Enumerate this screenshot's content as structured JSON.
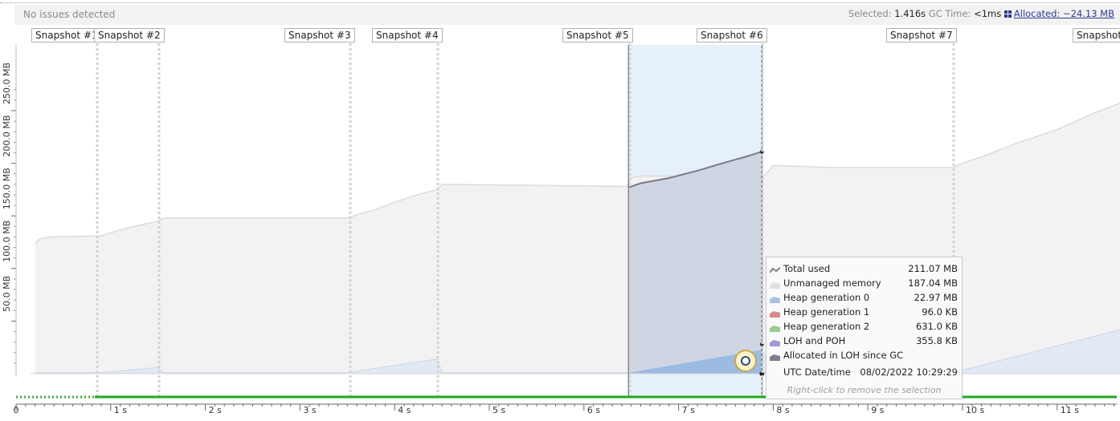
{
  "status": {
    "text": "No issues detected"
  },
  "selection": {
    "selected_label": "Selected:",
    "selected_value": "1.416s",
    "gc_label": "GC Time:",
    "gc_value": "<1ms",
    "allocated": "Allocated: ~24.13 MB"
  },
  "snapshots": [
    {
      "label": "Snapshot #1",
      "t": 0.0
    },
    {
      "label": "Snapshot #2",
      "t": 0.88
    },
    {
      "label": "Snapshot #3",
      "t": 3.55
    },
    {
      "label": "Snapshot #4",
      "t": 4.45
    },
    {
      "label": "Snapshot #5",
      "t": 6.45
    },
    {
      "label": "Snapshot #6",
      "t": 7.85
    },
    {
      "label": "Snapshot #7",
      "t": 9.9
    },
    {
      "label": "Snapshot",
      "t": 11.7
    }
  ],
  "chart_data": {
    "type": "area",
    "xlabel": "",
    "ylabel": "",
    "x_ticks": [
      "0",
      "1 s",
      "2 s",
      "3 s",
      "4 s",
      "5 s",
      "6 s",
      "7 s",
      "8 s",
      "9 s",
      "10 s",
      "11 s"
    ],
    "y_ticks": [
      "50.0 MB",
      "100.0 MB",
      "150.0 MB",
      "200.0 MB",
      "250.0 MB"
    ],
    "xlim": [
      0,
      11.8
    ],
    "ylim": [
      0,
      280
    ],
    "selection_range_s": [
      6.47,
      7.88
    ],
    "series": [
      {
        "name": "Unmanaged memory",
        "color": "#f2f2f2",
        "points": [
          [
            0.2,
            124
          ],
          [
            0.25,
            128
          ],
          [
            0.35,
            130
          ],
          [
            0.9,
            131
          ],
          [
            1.0,
            134
          ],
          [
            1.2,
            139
          ],
          [
            1.5,
            145
          ],
          [
            1.55,
            148
          ],
          [
            3.5,
            148
          ],
          [
            3.6,
            151
          ],
          [
            3.8,
            156
          ],
          [
            4.0,
            163
          ],
          [
            4.2,
            169
          ],
          [
            4.45,
            175
          ],
          [
            4.5,
            180
          ],
          [
            6.45,
            178
          ],
          [
            6.5,
            186
          ],
          [
            6.6,
            188
          ],
          [
            7.9,
            187
          ],
          [
            8.0,
            198
          ],
          [
            8.3,
            197
          ],
          [
            8.6,
            196
          ],
          [
            9.9,
            196
          ],
          [
            10.0,
            200
          ],
          [
            10.2,
            206
          ],
          [
            10.6,
            220
          ],
          [
            11.0,
            232
          ],
          [
            11.4,
            248
          ],
          [
            11.8,
            262
          ]
        ]
      },
      {
        "name": "Heap generation 0",
        "color": "#9bbbe0",
        "points": [
          [
            0.2,
            1
          ],
          [
            0.9,
            1
          ],
          [
            1.5,
            6
          ],
          [
            1.55,
            1
          ],
          [
            3.5,
            1
          ],
          [
            4.45,
            14
          ],
          [
            4.5,
            1
          ],
          [
            6.45,
            1
          ],
          [
            7.88,
            23
          ],
          [
            8.0,
            1
          ],
          [
            9.9,
            1
          ],
          [
            11.8,
            45
          ]
        ]
      },
      {
        "name": "Total used",
        "color": "#7a7a8c",
        "points": [
          [
            6.47,
            177
          ],
          [
            6.6,
            181
          ],
          [
            6.9,
            186
          ],
          [
            7.2,
            193
          ],
          [
            7.5,
            201
          ],
          [
            7.7,
            206
          ],
          [
            7.88,
            211
          ]
        ]
      }
    ]
  },
  "tooltip": {
    "rows": [
      {
        "label": "Total used",
        "value": "211.07 MB",
        "color": "#808080",
        "kind": "line"
      },
      {
        "label": "Unmanaged memory",
        "value": "187.04 MB",
        "color": "#e0e0e0",
        "kind": "area"
      },
      {
        "label": "Heap generation 0",
        "value": "22.97 MB",
        "color": "#a7c1e3",
        "kind": "area"
      },
      {
        "label": "Heap generation 1",
        "value": "96.0 KB",
        "color": "#d98a8a",
        "kind": "area"
      },
      {
        "label": "Heap generation 2",
        "value": "631.0 KB",
        "color": "#9cc98e",
        "kind": "area"
      },
      {
        "label": "LOH and POH",
        "value": "355.8 KB",
        "color": "#a696d6",
        "kind": "area"
      },
      {
        "label": "Allocated in LOH since GC",
        "value": "",
        "color": "#7e7e8e",
        "kind": "area"
      },
      {
        "label": "UTC Date/time",
        "value": "08/02/2022 10:29:29",
        "color": "",
        "kind": "none"
      }
    ],
    "hint": "Right-click to remove the selection"
  }
}
